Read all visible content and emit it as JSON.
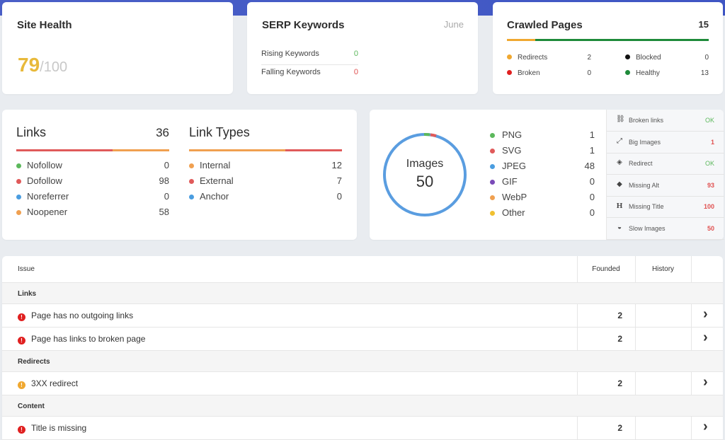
{
  "site_health": {
    "title": "Site Health",
    "score": "79",
    "max": "/100"
  },
  "serp": {
    "title": "SERP Keywords",
    "month": "June",
    "rows": [
      {
        "label": "Rising Keywords",
        "value": "0",
        "color": "#5cb85c"
      },
      {
        "label": "Falling Keywords",
        "value": "0",
        "color": "#e05050"
      }
    ]
  },
  "crawled": {
    "title": "Crawled Pages",
    "count": "15",
    "bar_colors": [
      "#f0a830",
      "#1e8a3a"
    ],
    "items": [
      {
        "label": "Redirects",
        "value": "2",
        "color": "#f0a830"
      },
      {
        "label": "Broken",
        "value": "0",
        "color": "#e02020"
      },
      {
        "label": "Blocked",
        "value": "0",
        "color": "#111111"
      },
      {
        "label": "Healthy",
        "value": "13",
        "color": "#1e8a3a"
      }
    ]
  },
  "links": {
    "title": "Links",
    "count": "36",
    "items": [
      {
        "label": "Nofollow",
        "value": "0",
        "color": "#5cb85c"
      },
      {
        "label": "Dofollow",
        "value": "98",
        "color": "#e05a5a"
      },
      {
        "label": "Noreferrer",
        "value": "0",
        "color": "#4a9de0"
      },
      {
        "label": "Noopener",
        "value": "58",
        "color": "#f0a050"
      }
    ]
  },
  "link_types": {
    "title": "Link Types",
    "items": [
      {
        "label": "Internal",
        "value": "12",
        "color": "#f0a050"
      },
      {
        "label": "External",
        "value": "7",
        "color": "#e05a5a"
      },
      {
        "label": "Anchor",
        "value": "0",
        "color": "#4a9de0"
      }
    ]
  },
  "images": {
    "title": "Images",
    "count": "50",
    "ring_color": "#5a9de0",
    "items": [
      {
        "label": "PNG",
        "value": "1",
        "color": "#5cb85c"
      },
      {
        "label": "SVG",
        "value": "1",
        "color": "#e05a5a"
      },
      {
        "label": "JPEG",
        "value": "48",
        "color": "#4a9de0"
      },
      {
        "label": "GIF",
        "value": "0",
        "color": "#7a4ab8"
      },
      {
        "label": "WebP",
        "value": "0",
        "color": "#f0a050"
      },
      {
        "label": "Other",
        "value": "0",
        "color": "#f0c030"
      }
    ]
  },
  "checks": [
    {
      "icon": "broken-link-icon",
      "glyph": "⛓",
      "label": "Broken links",
      "value": "OK",
      "color": "#5cb85c"
    },
    {
      "icon": "expand-icon",
      "glyph": "⤢",
      "label": "Big Images",
      "value": "1",
      "color": "#e05050"
    },
    {
      "icon": "redirect-icon",
      "glyph": "◈",
      "label": "Redirect",
      "value": "OK",
      "color": "#5cb85c"
    },
    {
      "icon": "tag-icon",
      "glyph": "◆",
      "label": "Missing Alt",
      "value": "93",
      "color": "#e05050"
    },
    {
      "icon": "heading-icon",
      "glyph": "H",
      "label": "Missing Title",
      "value": "100",
      "color": "#e05050"
    },
    {
      "icon": "speedometer-icon",
      "glyph": "◒",
      "label": "Slow Images",
      "value": "50",
      "color": "#e05050"
    }
  ],
  "table": {
    "headers": {
      "issue": "Issue",
      "founded": "Founded",
      "history": "History"
    },
    "rows": [
      {
        "type": "group",
        "label": "Links"
      },
      {
        "type": "issue",
        "label": "Page has no outgoing links",
        "severity": "error",
        "founded": "2"
      },
      {
        "type": "issue",
        "label": "Page has links to broken page",
        "severity": "error",
        "founded": "2"
      },
      {
        "type": "group",
        "label": "Redirects"
      },
      {
        "type": "issue",
        "label": "3XX redirect",
        "severity": "warning",
        "founded": "2"
      },
      {
        "type": "group",
        "label": "Content"
      },
      {
        "type": "issue",
        "label": "Title is missing",
        "severity": "error",
        "founded": "2"
      }
    ],
    "severity_colors": {
      "error": "#e02020",
      "warning": "#f0a830"
    }
  }
}
